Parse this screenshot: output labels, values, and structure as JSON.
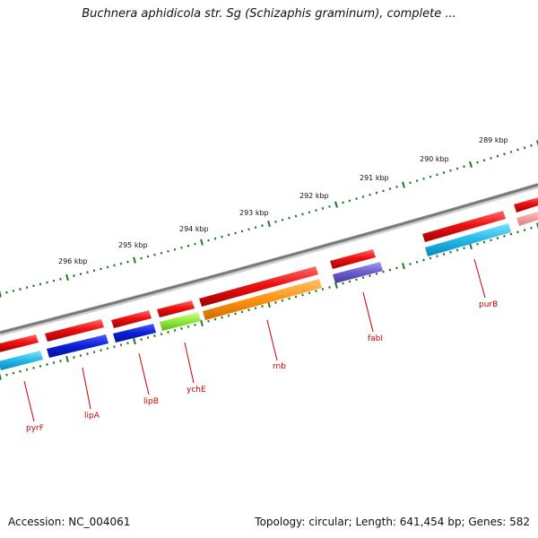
{
  "title": "Buchnera aphidicola str. Sg (Schizaphis graminum), complete ...",
  "footer": {
    "accession": "Accession: NC_004061",
    "summary": "Topology: circular; Length: 641,454 bp; Genes: 582"
  },
  "ruler_labels": [
    "296 kbp",
    "295 kbp",
    "294 kbp",
    "293 kbp",
    "292 kbp",
    "291 kbp",
    "290 kbp",
    "289 kbp"
  ],
  "gene_labels": [
    "pyrF",
    "lipA",
    "lipB",
    "ychE",
    "rnb",
    "fabI",
    "purB"
  ],
  "colors": {
    "backbone": "#8a8a8a",
    "ruler_tick": "#1e7a1e",
    "label_text": "#cc0000",
    "forward_feature": "#ee1111",
    "pyrF": "#22b8e8",
    "lipA": "#0a1fd6",
    "lipB": "#0a1fd6",
    "ychE": "#8ee83a",
    "rnb": "#ff9410",
    "fabI": "#6a5acd",
    "purB": "#22b8e8"
  }
}
